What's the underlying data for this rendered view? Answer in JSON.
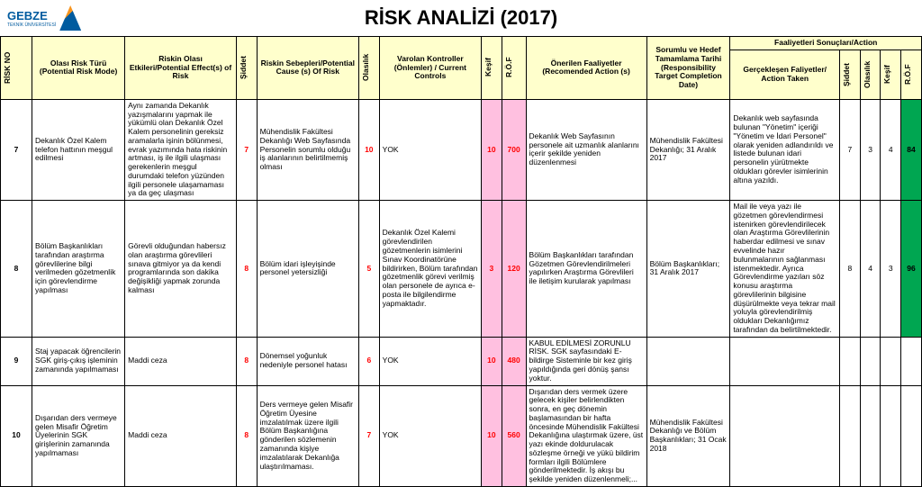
{
  "brand": {
    "name": "GEBZE",
    "sub": "TEKNİK ÜNİVERSİTESİ"
  },
  "title": "RİSK ANALİZİ (2017)",
  "headers": {
    "risk_no": "RİSK NO",
    "mode": "Olası Risk Türü (Potential Risk Mode)",
    "effects": "Riskin Olası Etkileri/Potential Effect(s) of Risk",
    "siddet": "Şiddet",
    "causes": "Riskin Sebepleri/Potential Cause (s) Of Risk",
    "olasilik": "Olasılık",
    "controls": "Varolan  Kontroller (Önlemler) / Current Controls",
    "kesif": "Keşif",
    "rof": "R.Ö.F",
    "actions": "Önerilen Faaliyetler (Recomended Action (s)",
    "resp": "Sorumlu ve Hedef Tamamlama Tarihi (Responsibility Target Completion Date)",
    "results_group": "Faaliyetleri Sonuçları/Action",
    "taken": "Gerçekleşen Faliyetler/ Action Taken",
    "siddet2": "Şiddet",
    "olasilik2": "Olasılık",
    "kesif2": "Keşif",
    "rof2": "R.Ö.F"
  },
  "rows": [
    {
      "no": "7",
      "mode": "Dekanlık Özel Kalem telefon hattının meşgul edilmesi",
      "effects": "Aynı zamanda Dekanlık yazışmalarını yapmak ile yükümlü olan Dekanlık Özel Kalem personelinin gereksiz aramalarla işinin bölünmesi, evrak yazımında hata riskinin artması, iş ile ilgili ulaşması gerekenlerin meşgul durumdaki telefon yüzünden ilgili personele ulaşamaması ya da geç ulaşması",
      "siddet": "7",
      "causes": "Mühendislik Fakültesi Dekanlığı Web Sayfasında Personelin sorumlu olduğu iş alanlarının belirtilmemiş olması",
      "olasilik": "10",
      "controls": "YOK",
      "kesif": "10",
      "rof": "700",
      "actions": "Dekanlık Web Sayfasının personele ait uzmanlık alanlarını içerir şekilde yeniden düzenlenmesi",
      "resp": "Mühendislik Fakültesi Dekanlığı; 31 Aralık 2017",
      "taken": "Dekanlık web sayfasında bulunan \"Yönetim\" içeriği \"Yönetim ve İdari Personel\" olarak yeniden adlandırıldı ve listede bulunan idari personelin yürütmekte oldukları görevler isimlerinin altına yazıldı.",
      "s2": "7",
      "o2": "3",
      "k2": "4",
      "r2": "84"
    },
    {
      "no": "8",
      "mode": "Bölüm Başkanlıkları tarafından araştırma görevlilerine bilgi verilmeden gözetmenlik için görevlendirme yapılması",
      "effects": "Görevli olduğundan habersız olan araştırma görevlileri sınava gitmiyor ya da kendi programlarında son dakika değişikliği yapmak zorunda kalması",
      "siddet": "8",
      "causes": "Bölüm idari işleyişinde personel yetersizliği",
      "olasilik": "5",
      "controls": "Dekanlık Özel Kalemi görevlendirilen gözetmenlerin isimlerini Sınav Koordinatörüne bildirirken, Bölüm tarafından gözetmenlik görevi verilmiş olan personele de ayrıca e-posta ile bilgilendirme yapmaktadır.",
      "kesif": "3",
      "rof": "120",
      "actions": "Bölüm Başkanlıkları tarafından Gözetmen Görevlendirilmeleri yapılırken Araştırma Görevlileri ile iletişim kurularak yapılması",
      "resp": "Bölüm Başkanlıkları; 31 Aralık 2017",
      "taken": "Mail ile veya yazı ile gözetmen görevlendirmesi istenirken görevlendirilecek olan Araştırma Görevlilerinin haberdar edilmesi ve sınav evvelinde hazır bulunmalarının sağlanması istenmektedir. Ayrıca Görevlendirme yazıları söz konusu araştırma görevlilerinin bilgisine düşürülmekte veya tekrar mail yoluyla görevlendirilmiş oldukları Dekanlığımız tarafından da belirtilmektedir.",
      "s2": "8",
      "o2": "4",
      "k2": "3",
      "r2": "96"
    },
    {
      "no": "9",
      "mode": "Staj yapacak öğrencilerin SGK giriş-çıkış işleminin zamanında yapılmaması",
      "effects": "Maddi ceza",
      "siddet": "8",
      "causes": "Dönemsel yoğunluk nedeniyle personel hatası",
      "olasilik": "6",
      "controls": "YOK",
      "kesif": "10",
      "rof": "480",
      "actions": "KABUL EDİLMESİ ZORUNLU RİSK. SGK sayfasındaki E-bildirge Sisteminle bir kez giriş yapıldığında geri dönüş şansı yoktur.",
      "resp": "",
      "taken": "",
      "s2": "",
      "o2": "",
      "k2": "",
      "r2": ""
    },
    {
      "no": "10",
      "mode": "Dışarıdan ders vermeye gelen Misafir Öğretim Üyelerinin SGK girişlerinin zamanında yapılmaması",
      "effects": "Maddi ceza",
      "siddet": "8",
      "causes": "Ders vermeye gelen Misafir Öğretim Üyesine imzalatılmak üzere ilgili Bölüm Başkanlığına gönderilen sözlemenin zamanında kişiye imzalatılarak Dekanlığa ulaştırılmaması.",
      "olasilik": "7",
      "controls": "YOK",
      "kesif": "10",
      "rof": "560",
      "actions": "Dışarıdan ders vermek üzere gelecek kişiler belirlendikten sonra, en geç dönemin başlamasından bir hafta öncesinde Mühendislik Fakültesi Dekanlığına ulaştırmak üzere, üst yazı ekinde doldurulacak sözleşme örneği ve yükü bildirim formları ilgili Bölümlere gönderilmektedir. İş akışı bu şekilde yeniden düzenlenmeli;...",
      "resp": "Mühendislik Fakültesi Dekanlığı ve Bölüm Başkanlıkları; 31 Ocak 2018",
      "taken": "",
      "s2": "",
      "o2": "",
      "k2": "",
      "r2": ""
    }
  ]
}
